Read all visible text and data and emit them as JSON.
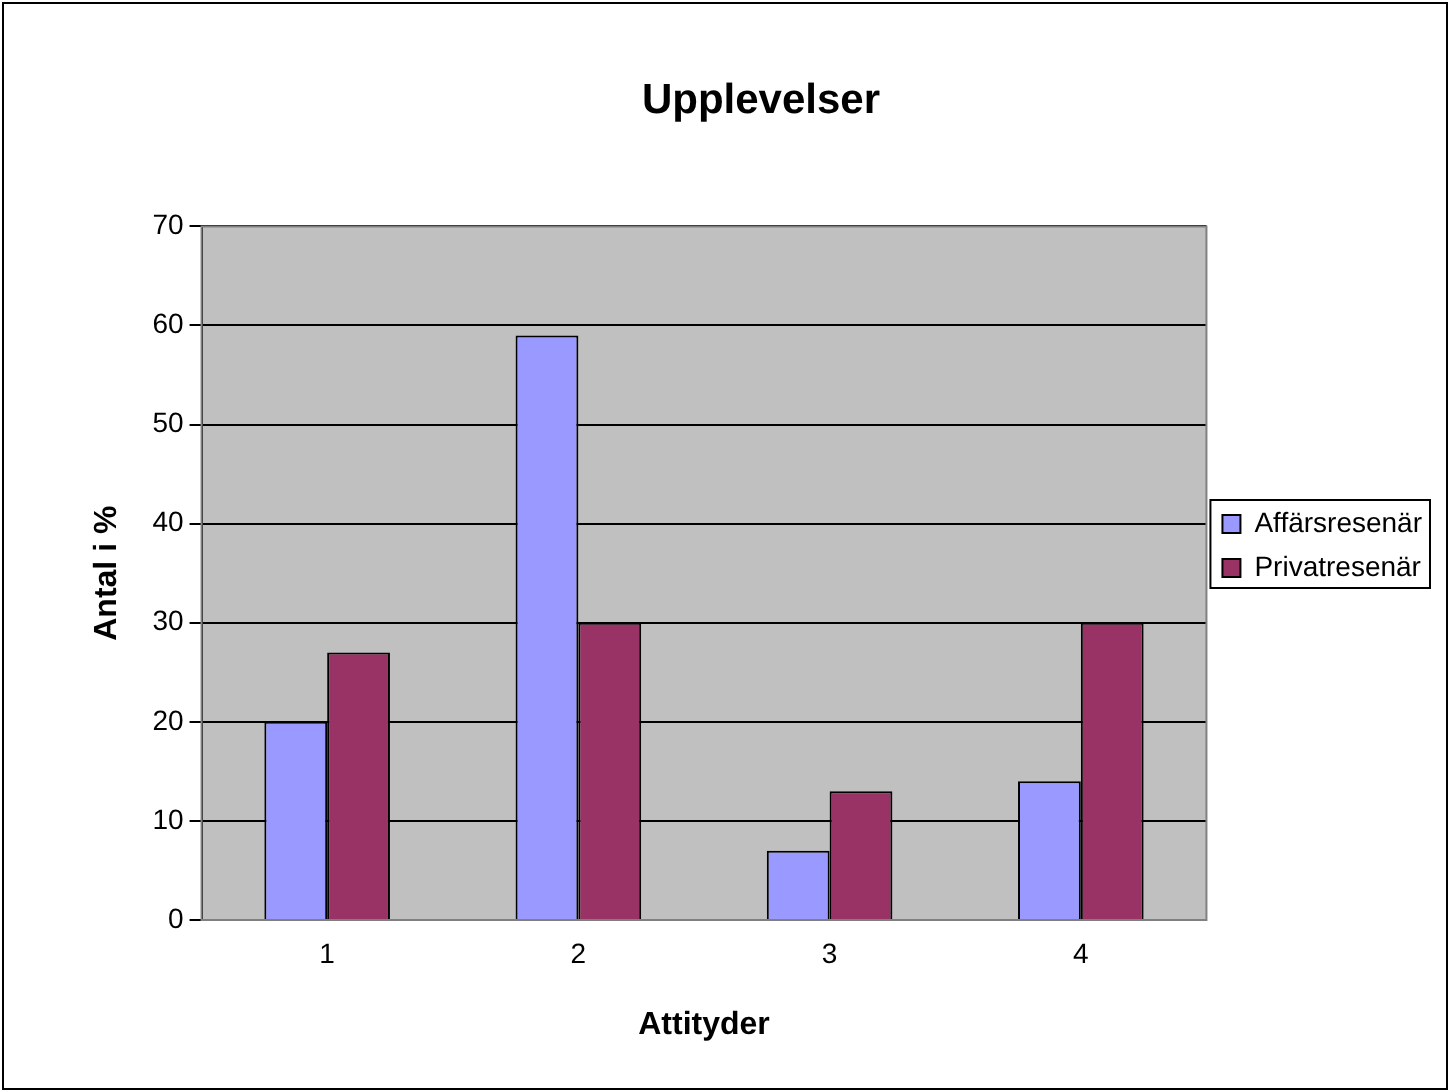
{
  "chart_data": {
    "type": "bar",
    "title": "Upplevelser",
    "xlabel": "Attityder",
    "ylabel": "Antal i %",
    "categories": [
      "1",
      "2",
      "3",
      "4"
    ],
    "series": [
      {
        "name": "Affärsresenär",
        "color": "#9999ff",
        "values": [
          20,
          59,
          7,
          14
        ]
      },
      {
        "name": "Privatresenär",
        "color": "#993366",
        "values": [
          27,
          30,
          13,
          30
        ]
      }
    ],
    "ylim": [
      0,
      70
    ],
    "yticks": [
      0,
      10,
      20,
      30,
      40,
      50,
      60,
      70
    ],
    "grid": "y",
    "legend": "right"
  }
}
